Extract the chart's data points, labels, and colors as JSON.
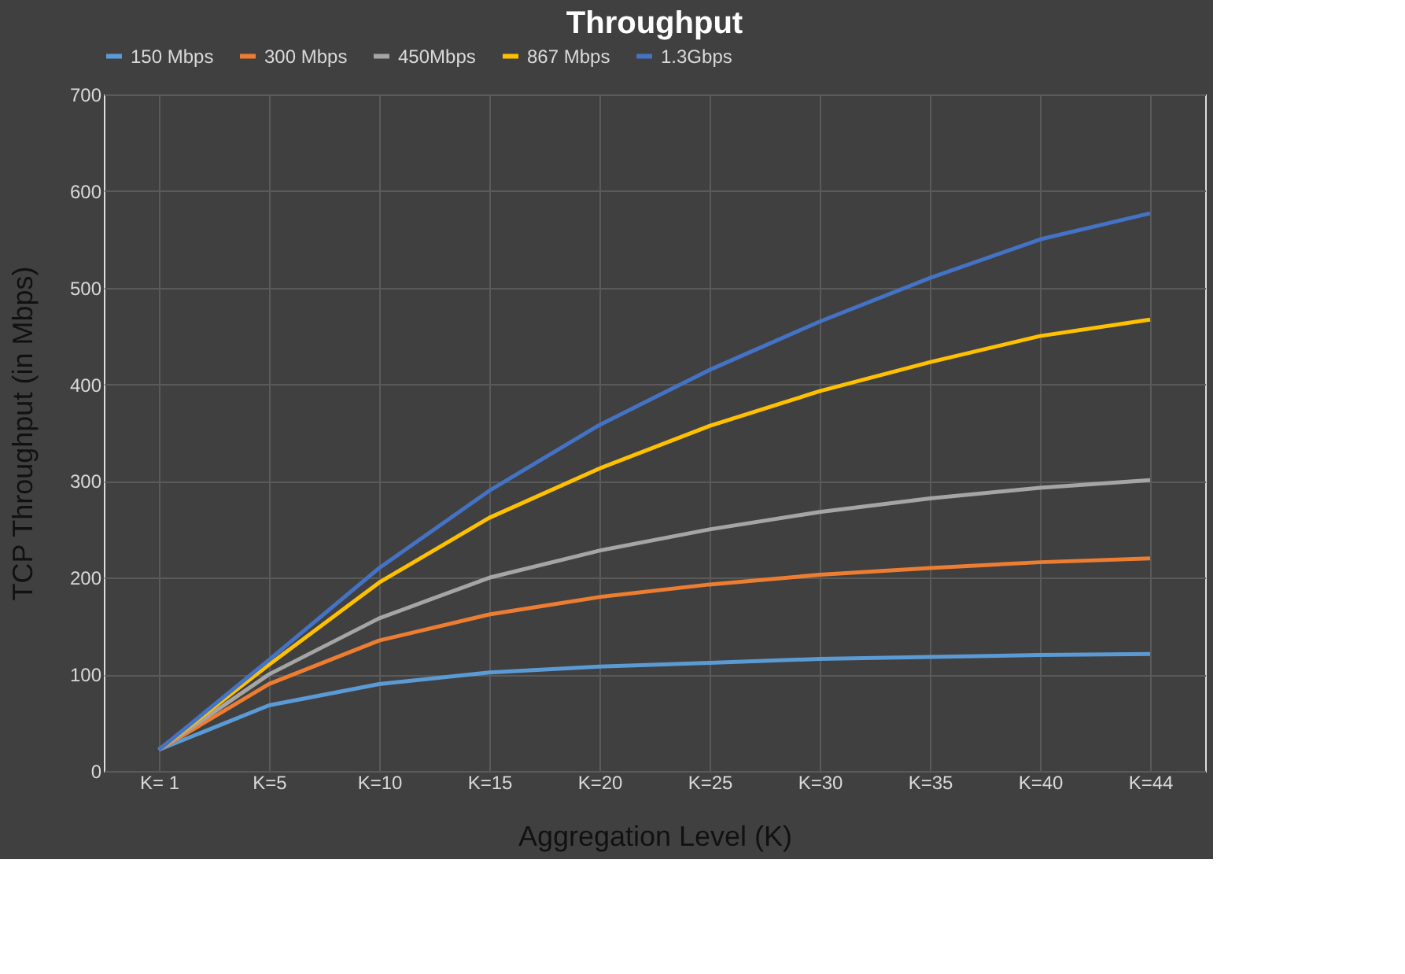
{
  "chart_data": {
    "type": "line",
    "title": "Throughput",
    "xlabel": "Aggregation Level (K)",
    "ylabel": "TCP Throughput (in Mbps)",
    "categories": [
      "K= 1",
      "K=5",
      "K=10",
      "K=15",
      "K=20",
      "K=25",
      "K=30",
      "K=35",
      "K=40",
      "K=44"
    ],
    "series": [
      {
        "name": "150 Mbps",
        "color": "#5b9bd5",
        "values": [
          22,
          68,
          90,
          102,
          108,
          112,
          116,
          118,
          120,
          121
        ]
      },
      {
        "name": "300 Mbps",
        "color": "#ed7d31",
        "values": [
          22,
          90,
          135,
          162,
          180,
          193,
          203,
          210,
          216,
          220
        ]
      },
      {
        "name": "450Mbps",
        "color": "#a5a5a5",
        "values": [
          22,
          100,
          158,
          200,
          228,
          250,
          268,
          282,
          293,
          301
        ]
      },
      {
        "name": "867 Mbps",
        "color": "#ffc000",
        "values": [
          22,
          110,
          195,
          262,
          313,
          357,
          393,
          423,
          450,
          467
        ]
      },
      {
        "name": "1.3Gbps",
        "color": "#4472c4",
        "values": [
          22,
          115,
          210,
          290,
          358,
          415,
          465,
          510,
          550,
          577
        ]
      }
    ],
    "ylim": [
      0,
      700
    ],
    "yticks": [
      0,
      100,
      200,
      300,
      400,
      500,
      600,
      700
    ],
    "grid": true,
    "legend": "top",
    "marker": "none",
    "line_style": "solid"
  }
}
